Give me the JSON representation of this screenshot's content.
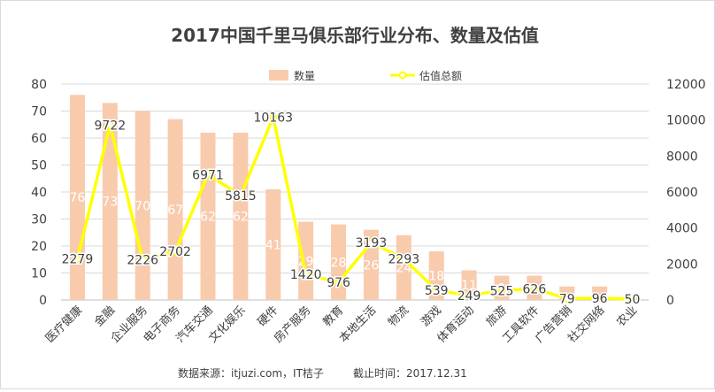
{
  "chart_data": {
    "type": "bar",
    "title": "2017中国千里马俱乐部行业分布、数量及估值",
    "categories": [
      "医疗健康",
      "金融",
      "企业服务",
      "电子商务",
      "汽车交通",
      "文化娱乐",
      "硬件",
      "房产服务",
      "教育",
      "本地生活",
      "物流",
      "游戏",
      "体育运动",
      "旅游",
      "工具软件",
      "广告营销",
      "社交网络",
      "农业"
    ],
    "series": [
      {
        "name": "数量",
        "type": "bar",
        "axis": "left",
        "color": "#f8cbad",
        "values": [
          76,
          73,
          70,
          67,
          62,
          62,
          41,
          29,
          28,
          26,
          24,
          18,
          11,
          9,
          9,
          5,
          5,
          1
        ],
        "labels": [
          "76",
          "73",
          "70",
          "67",
          "62",
          "62",
          "41",
          "29",
          "28",
          "26",
          "24",
          "18",
          "11",
          "9",
          "9",
          "",
          "",
          ""
        ]
      },
      {
        "name": "估值总额",
        "type": "line",
        "axis": "right",
        "color": "#ffff00",
        "values": [
          2279,
          9722,
          2226,
          2702,
          6971,
          5815,
          10163,
          1420,
          976,
          3193,
          2293,
          539,
          249,
          525,
          626,
          79,
          96,
          50
        ]
      }
    ],
    "y_left": {
      "min": 0,
      "max": 80,
      "ticks": [
        0,
        10,
        20,
        30,
        40,
        50,
        60,
        70,
        80
      ]
    },
    "y_right": {
      "min": 0,
      "max": 12000,
      "ticks": [
        0,
        2000,
        4000,
        6000,
        8000,
        10000,
        12000
      ]
    },
    "grid": true,
    "legend_position": "top-center"
  },
  "footer": {
    "source": "数据来源：itjuzi.com，IT桔子",
    "date": "截止时间：2017.12.31"
  }
}
